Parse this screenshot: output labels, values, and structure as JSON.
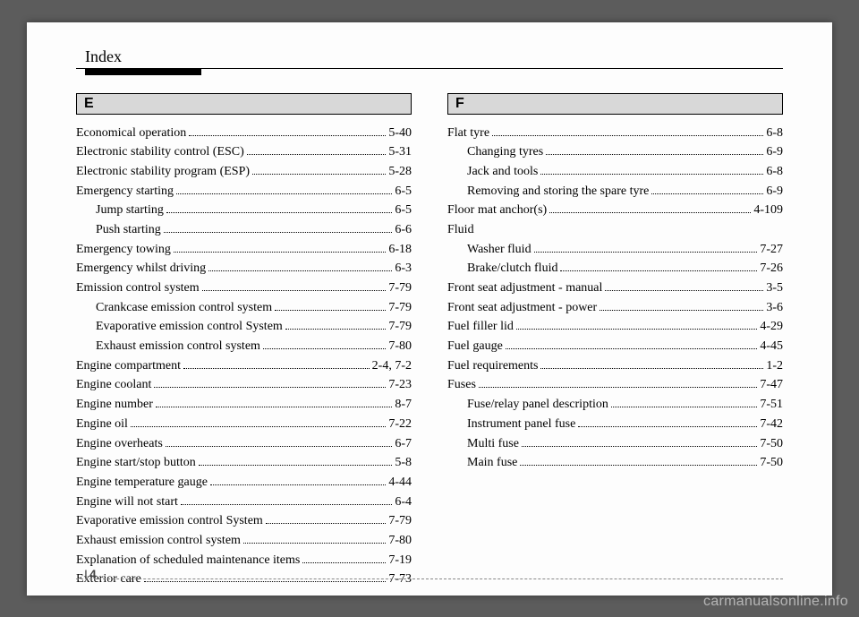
{
  "header": {
    "title": "Index"
  },
  "footer": {
    "section": "I",
    "page": "4"
  },
  "watermark": "carmanualsonline.info",
  "left": {
    "letter": "E",
    "entries": [
      {
        "label": "Economical operation ",
        "page": "5-40",
        "sub": false
      },
      {
        "label": "Electronic stability control (ESC) ",
        "page": "5-31",
        "sub": false
      },
      {
        "label": "Electronic stability program (ESP) ",
        "page": "5-28",
        "sub": false
      },
      {
        "label": "Emergency starting ",
        "page": "6-5",
        "sub": false
      },
      {
        "label": "Jump starting ",
        "page": "6-5",
        "sub": true
      },
      {
        "label": "Push starting ",
        "page": "6-6",
        "sub": true
      },
      {
        "label": "Emergency towing ",
        "page": "6-18",
        "sub": false
      },
      {
        "label": "Emergency whilst driving ",
        "page": "6-3",
        "sub": false
      },
      {
        "label": "Emission control system ",
        "page": "7-79",
        "sub": false
      },
      {
        "label": "Crankcase emission control system ",
        "page": "7-79",
        "sub": true
      },
      {
        "label": "Evaporative emission control System ",
        "page": "7-79",
        "sub": true
      },
      {
        "label": "Exhaust emission control system ",
        "page": "7-80",
        "sub": true
      },
      {
        "label": "Engine compartment ",
        "page": "2-4, 7-2",
        "sub": false
      },
      {
        "label": "Engine coolant ",
        "page": "7-23",
        "sub": false
      },
      {
        "label": "Engine number ",
        "page": "8-7",
        "sub": false
      },
      {
        "label": "Engine oil ",
        "page": "7-22",
        "sub": false
      },
      {
        "label": "Engine overheats ",
        "page": "6-7",
        "sub": false
      },
      {
        "label": "Engine start/stop button ",
        "page": "5-8",
        "sub": false
      },
      {
        "label": "Engine temperature gauge",
        "page": "4-44",
        "sub": false
      },
      {
        "label": "Engine will not start ",
        "page": "6-4",
        "sub": false
      },
      {
        "label": "Evaporative emission control System ",
        "page": "7-79",
        "sub": false
      },
      {
        "label": "Exhaust emission control system ",
        "page": "7-80",
        "sub": false
      },
      {
        "label": "Explanation of scheduled maintenance items ",
        "page": "7-19",
        "sub": false
      },
      {
        "label": "Exterior care ",
        "page": "7-73",
        "sub": false
      }
    ]
  },
  "right": {
    "letter": "F",
    "entries": [
      {
        "label": "Flat tyre ",
        "page": "6-8",
        "sub": false
      },
      {
        "label": "Changing tyres ",
        "page": "6-9",
        "sub": true
      },
      {
        "label": "Jack and tools ",
        "page": "6-8",
        "sub": true
      },
      {
        "label": "Removing and storing the spare tyre ",
        "page": "6-9",
        "sub": true
      },
      {
        "label": "Floor mat anchor(s) ",
        "page": "4-109",
        "sub": false
      },
      {
        "label": "Fluid",
        "page": "",
        "sub": false,
        "nodots": true
      },
      {
        "label": "Washer fluid ",
        "page": "7-27",
        "sub": true
      },
      {
        "label": "Brake/clutch fluid ",
        "page": "7-26",
        "sub": true
      },
      {
        "label": "Front seat adjustment - manual ",
        "page": "3-5",
        "sub": false
      },
      {
        "label": "Front seat adjustment - power",
        "page": "3-6",
        "sub": false
      },
      {
        "label": "Fuel filler lid ",
        "page": "4-29",
        "sub": false
      },
      {
        "label": "Fuel gauge ",
        "page": "4-45",
        "sub": false
      },
      {
        "label": "Fuel requirements ",
        "page": "1-2",
        "sub": false
      },
      {
        "label": "Fuses ",
        "page": "7-47",
        "sub": false
      },
      {
        "label": "Fuse/relay panel description ",
        "page": "7-51",
        "sub": true
      },
      {
        "label": "Instrument panel fuse ",
        "page": "7-42",
        "sub": true
      },
      {
        "label": "Multi fuse ",
        "page": "7-50",
        "sub": true
      },
      {
        "label": "Main fuse ",
        "page": "7-50",
        "sub": true
      }
    ]
  }
}
